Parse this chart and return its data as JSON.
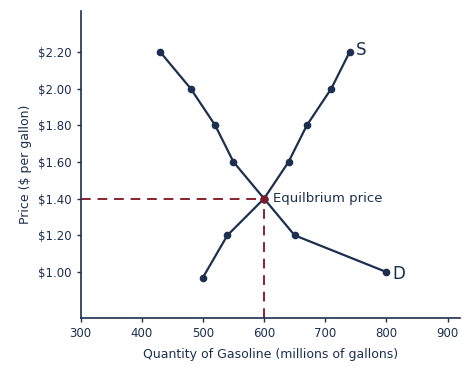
{
  "demand_x": [
    430,
    480,
    520,
    550,
    600,
    650,
    800
  ],
  "demand_y": [
    2.2,
    2.0,
    1.8,
    1.6,
    1.4,
    1.2,
    1.0
  ],
  "supply_x": [
    500,
    540,
    600,
    640,
    670,
    710,
    740
  ],
  "supply_y": [
    0.97,
    1.2,
    1.4,
    1.6,
    1.8,
    2.0,
    2.2
  ],
  "equilibrium_x": 600,
  "equilibrium_y": 1.4,
  "curve_color": "#1c2f4e",
  "dashed_color": "#8b2035",
  "dot_color": "#1c2f4e",
  "eq_dot_color": "#7a1c2e",
  "xlabel": "Quantity of Gasoline (millions of gallons)",
  "ylabel": "Price ($ per gallon)",
  "label_S": "S",
  "label_D": "D",
  "annotation": "Equilbrium price",
  "xlim": [
    300,
    920
  ],
  "ylim": [
    0.75,
    2.42
  ],
  "xticks": [
    300,
    400,
    500,
    600,
    700,
    800,
    900
  ],
  "yticks": [
    1.0,
    1.2,
    1.4,
    1.6,
    1.8,
    2.0,
    2.2
  ],
  "ytick_labels": [
    "$1.00",
    "$1.20",
    "$1.40",
    "$1.60",
    "$1.80",
    "$2.00",
    "$2.20"
  ],
  "background_color": "#ffffff",
  "line_width": 1.6,
  "marker_size": 5.5,
  "font_size_labels": 9,
  "font_size_ticks": 8.5,
  "font_size_annotation": 9.5,
  "font_size_curve_label": 12
}
